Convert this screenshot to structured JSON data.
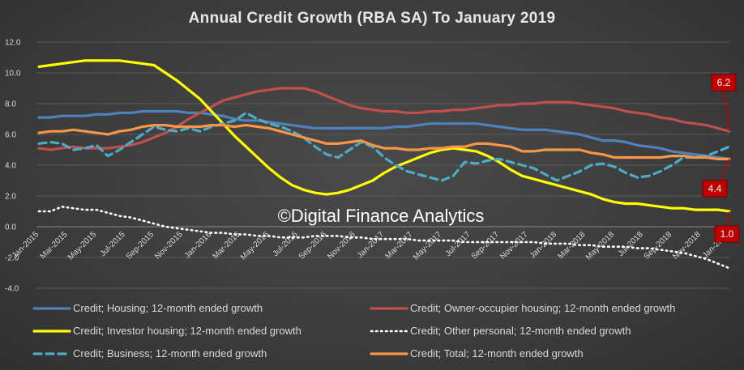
{
  "chart_data": {
    "type": "line",
    "title": "Annual Credit Growth (RBA SA) To January 2019",
    "watermark": "©Digital Finance Analytics",
    "ylim": [
      -4,
      12
    ],
    "yticks": [
      "12.0",
      "10.0",
      "8.0",
      "6.0",
      "4.0",
      "2.0",
      "0.0",
      "-2.0",
      "-4.0"
    ],
    "ytick_values": [
      12,
      10,
      8,
      6,
      4,
      2,
      0,
      -2,
      -4
    ],
    "x_labels": [
      "Jan-2015",
      "Mar-2015",
      "May-2015",
      "Jul-2015",
      "Sep-2015",
      "Nov-2015",
      "Jan-2016",
      "Mar-2016",
      "May-2016",
      "Jul-2016",
      "Sep-2016",
      "Nov-2016",
      "Jan-2017",
      "Mar-2017",
      "May-2017",
      "Jul-2017",
      "Sep-2017",
      "Nov-2017",
      "Jan-2018",
      "Mar-2018",
      "May-2018",
      "Jul-2018",
      "Sep-2018",
      "Nov-2018",
      "Jan-2019"
    ],
    "grid": true,
    "legend_position": "bottom",
    "series": [
      {
        "name": "Credit; Housing; 12-month ended growth",
        "color": "#4f81bd",
        "style": "solid",
        "values": [
          7.1,
          7.1,
          7.2,
          7.2,
          7.2,
          7.3,
          7.3,
          7.4,
          7.4,
          7.5,
          7.5,
          7.5,
          7.5,
          7.4,
          7.4,
          7.3,
          7.2,
          7.0,
          6.9,
          6.9,
          6.8,
          6.7,
          6.6,
          6.5,
          6.4,
          6.4,
          6.4,
          6.4,
          6.4,
          6.4,
          6.4,
          6.5,
          6.5,
          6.6,
          6.7,
          6.7,
          6.7,
          6.7,
          6.7,
          6.6,
          6.5,
          6.4,
          6.3,
          6.3,
          6.3,
          6.2,
          6.1,
          6.0,
          5.8,
          5.6,
          5.6,
          5.5,
          5.3,
          5.2,
          5.1,
          4.9,
          4.8,
          4.7,
          4.6,
          4.5,
          4.4
        ]
      },
      {
        "name": "Credit; Owner-occupier housing; 12-month ended growth",
        "color": "#c0504d",
        "style": "solid",
        "values": [
          5.1,
          5.0,
          5.1,
          5.2,
          5.1,
          5.1,
          5.1,
          5.2,
          5.3,
          5.5,
          5.8,
          6.1,
          6.5,
          7.0,
          7.4,
          7.8,
          8.2,
          8.4,
          8.6,
          8.8,
          8.9,
          9.0,
          9.0,
          9.0,
          8.8,
          8.5,
          8.2,
          7.9,
          7.7,
          7.6,
          7.5,
          7.5,
          7.4,
          7.4,
          7.5,
          7.5,
          7.6,
          7.6,
          7.7,
          7.8,
          7.9,
          7.9,
          8.0,
          8.0,
          8.1,
          8.1,
          8.1,
          8.0,
          7.9,
          7.8,
          7.7,
          7.5,
          7.4,
          7.3,
          7.1,
          7.0,
          6.8,
          6.7,
          6.6,
          6.4,
          6.2
        ]
      },
      {
        "name": "Credit; Investor housing; 12-month ended growth",
        "color": "#ffff00",
        "style": "solid",
        "values": [
          10.4,
          10.5,
          10.6,
          10.7,
          10.8,
          10.8,
          10.8,
          10.8,
          10.7,
          10.6,
          10.5,
          10.0,
          9.5,
          8.9,
          8.3,
          7.5,
          6.7,
          5.9,
          5.2,
          4.5,
          3.8,
          3.2,
          2.7,
          2.4,
          2.2,
          2.1,
          2.2,
          2.4,
          2.7,
          3.0,
          3.5,
          3.9,
          4.2,
          4.5,
          4.8,
          5.0,
          5.1,
          5.0,
          4.9,
          4.6,
          4.2,
          3.7,
          3.3,
          3.1,
          2.9,
          2.7,
          2.5,
          2.3,
          2.1,
          1.8,
          1.6,
          1.5,
          1.5,
          1.4,
          1.3,
          1.2,
          1.2,
          1.1,
          1.1,
          1.1,
          1.0
        ]
      },
      {
        "name": "Credit; Other personal; 12-month ended growth",
        "color": "#ffffff",
        "style": "dotted",
        "values": [
          1.0,
          1.0,
          1.3,
          1.2,
          1.1,
          1.1,
          0.9,
          0.7,
          0.6,
          0.4,
          0.2,
          0.0,
          -0.1,
          -0.2,
          -0.3,
          -0.4,
          -0.4,
          -0.5,
          -0.5,
          -0.6,
          -0.6,
          -0.7,
          -0.7,
          -0.7,
          -0.6,
          -0.6,
          -0.6,
          -0.7,
          -0.7,
          -0.8,
          -0.8,
          -0.8,
          -0.8,
          -0.9,
          -0.9,
          -0.9,
          -0.9,
          -1.0,
          -1.0,
          -1.0,
          -1.0,
          -1.0,
          -1.0,
          -1.0,
          -1.1,
          -1.1,
          -1.1,
          -1.2,
          -1.2,
          -1.3,
          -1.3,
          -1.3,
          -1.4,
          -1.4,
          -1.5,
          -1.6,
          -1.7,
          -1.9,
          -2.1,
          -2.4,
          -2.7
        ]
      },
      {
        "name": "Credit; Business; 12-month ended growth",
        "color": "#4bacc6",
        "style": "dashed",
        "values": [
          5.4,
          5.5,
          5.4,
          5.0,
          5.1,
          5.3,
          4.6,
          5.0,
          5.5,
          6.0,
          6.5,
          6.3,
          6.2,
          6.4,
          6.2,
          6.5,
          6.7,
          6.9,
          7.4,
          7.0,
          6.7,
          6.5,
          6.2,
          5.8,
          5.2,
          4.7,
          4.5,
          5.0,
          5.5,
          5.2,
          4.5,
          4.0,
          3.6,
          3.4,
          3.2,
          3.0,
          3.3,
          4.2,
          4.1,
          4.3,
          4.4,
          4.2,
          4.0,
          3.8,
          3.4,
          3.0,
          3.3,
          3.6,
          4.0,
          4.1,
          3.9,
          3.5,
          3.2,
          3.3,
          3.6,
          4.0,
          4.5,
          4.5,
          4.6,
          4.9,
          5.2
        ]
      },
      {
        "name": "Credit; Total; 12-month ended growth",
        "color": "#f79646",
        "style": "solid",
        "values": [
          6.1,
          6.2,
          6.2,
          6.3,
          6.2,
          6.1,
          6.0,
          6.2,
          6.3,
          6.5,
          6.6,
          6.6,
          6.5,
          6.5,
          6.5,
          6.6,
          6.6,
          6.5,
          6.6,
          6.5,
          6.4,
          6.2,
          6.0,
          5.8,
          5.6,
          5.4,
          5.4,
          5.5,
          5.6,
          5.3,
          5.1,
          5.1,
          5.0,
          5.0,
          5.1,
          5.1,
          5.2,
          5.2,
          5.4,
          5.4,
          5.3,
          5.2,
          4.9,
          4.9,
          5.0,
          5.0,
          5.0,
          5.0,
          4.8,
          4.7,
          4.5,
          4.5,
          4.5,
          4.5,
          4.5,
          4.6,
          4.6,
          4.5,
          4.5,
          4.4,
          4.4
        ]
      }
    ],
    "legend_order": [
      0,
      1,
      2,
      3,
      4,
      5
    ],
    "annotations": [
      {
        "text": "6.2",
        "series": "Credit; Owner-occupier housing; 12-month ended growth",
        "value": 6.2
      },
      {
        "text": "4.4",
        "series": "Credit; Total; 12-month ended growth",
        "value": 4.4
      },
      {
        "text": "1.0",
        "series": "Credit; Investor housing; 12-month ended growth",
        "value": 1.0
      }
    ]
  }
}
